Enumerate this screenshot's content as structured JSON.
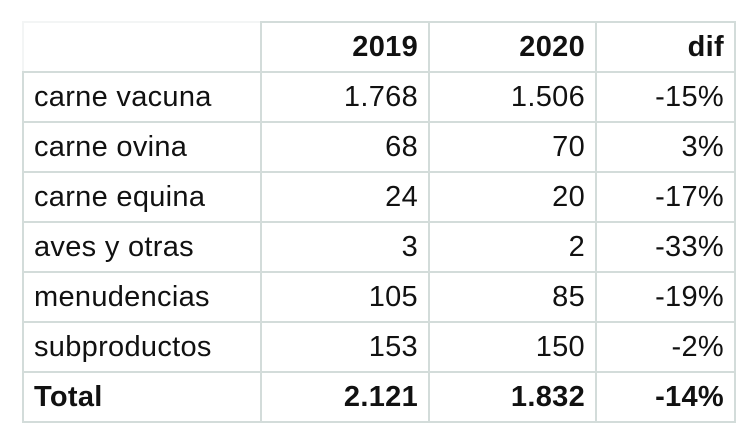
{
  "table": {
    "headers": [
      "",
      "2019",
      "2020",
      "dif"
    ],
    "rows": [
      {
        "label": "carne vacuna",
        "y2019": "1.768",
        "y2020": "1.506",
        "dif": "-15%"
      },
      {
        "label": "carne ovina",
        "y2019": "68",
        "y2020": "70",
        "dif": "3%"
      },
      {
        "label": "carne equina",
        "y2019": "24",
        "y2020": "20",
        "dif": "-17%"
      },
      {
        "label": "aves y otras",
        "y2019": "3",
        "y2020": "2",
        "dif": "-33%"
      },
      {
        "label": "menudencias",
        "y2019": "105",
        "y2020": "85",
        "dif": "-19%"
      },
      {
        "label": "subproductos",
        "y2019": "153",
        "y2020": "150",
        "dif": "-2%"
      }
    ],
    "total": {
      "label": "Total",
      "y2019": "2.121",
      "y2020": "1.832",
      "dif": "-14%"
    }
  },
  "colors": {
    "border": "#d3dcda",
    "text": "#111111",
    "background": "#ffffff"
  }
}
